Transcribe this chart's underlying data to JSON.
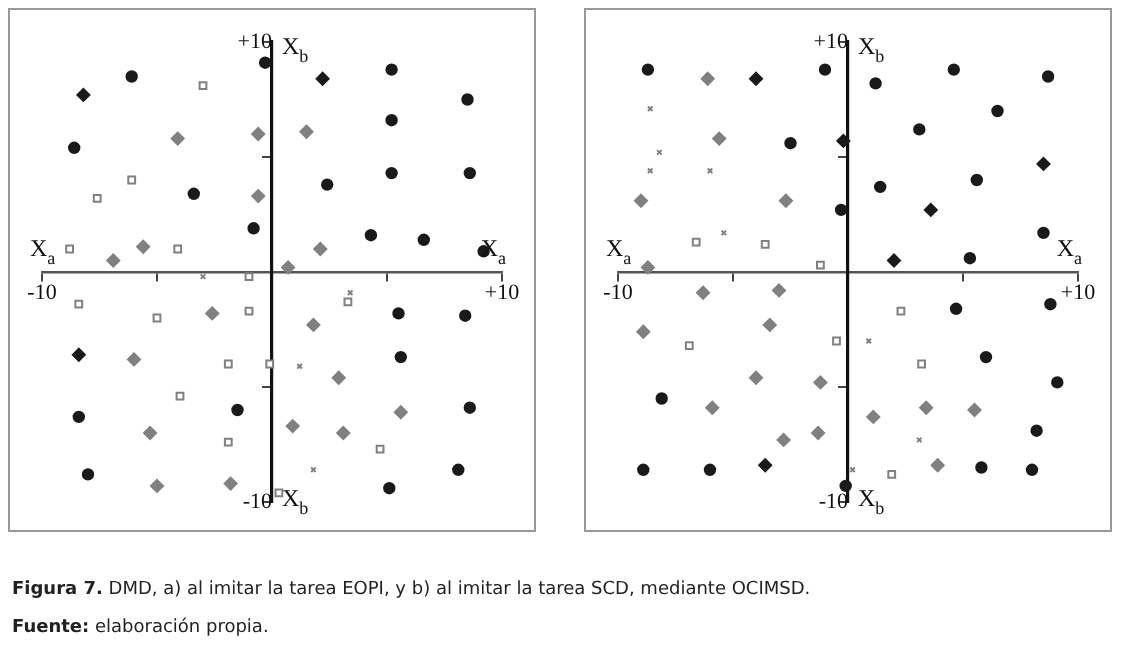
{
  "chart_data": [
    {
      "type": "scatter",
      "xlabel": "X$_{a}$",
      "ylabel": "X$_{b}$",
      "xlim": [
        -10,
        10
      ],
      "ylim": [
        -10,
        10
      ],
      "xticks": [
        -10,
        {
          "value": -5,
          "label": null
        },
        {
          "value": 5,
          "label": null
        },
        {
          "value": 10,
          "label": "+10"
        }
      ],
      "yticks": [
        -10,
        {
          "value": -5,
          "label": null
        },
        {
          "value": 5,
          "label": null
        },
        {
          "value": 10,
          "label": "+10"
        }
      ],
      "grid": false,
      "legend": false,
      "series": [
        {
          "color": "#1a1a1a",
          "marker": "circle",
          "x": [
            -0.3,
            -6.1,
            5.2,
            8.5,
            5.2,
            -8.6,
            5.2,
            8.6,
            2.4,
            -3.4,
            -0.8,
            4.3,
            6.6,
            9.2,
            5.5,
            8.4,
            5.6,
            -8.4,
            -1.5,
            8.6,
            -8.0,
            8.1,
            5.1
          ],
          "values": [
            9.1,
            8.5,
            8.8,
            7.5,
            6.6,
            5.4,
            4.3,
            4.3,
            3.8,
            3.4,
            1.9,
            1.6,
            1.4,
            0.9,
            -1.8,
            -1.9,
            -3.7,
            -6.3,
            -6.0,
            -5.9,
            -8.8,
            -8.6,
            -9.4
          ]
        },
        {
          "color": "#1a1a1a",
          "marker": "diamond",
          "x": [
            -8.2,
            2.2,
            -8.4
          ],
          "values": [
            7.7,
            8.4,
            -3.6
          ]
        },
        {
          "color": "#808080",
          "marker": "diamond",
          "x": [
            -4.1,
            -0.6,
            1.5,
            -0.6,
            -5.6,
            -6.9,
            2.1,
            0.7,
            1.8,
            -6.0,
            -2.6,
            2.9,
            5.6,
            0.9,
            3.1,
            -5.3,
            -5.0,
            -1.8
          ],
          "values": [
            5.8,
            6.0,
            6.1,
            3.3,
            1.1,
            0.5,
            1.0,
            0.2,
            -2.3,
            -3.8,
            -1.8,
            -4.6,
            -6.1,
            -6.7,
            -7.0,
            -7.0,
            -9.3,
            -9.2
          ]
        },
        {
          "color": "#808080",
          "marker": "square",
          "x": [
            -3.0,
            -6.1,
            -7.6,
            -8.8,
            -4.1,
            -1.0,
            -8.4,
            -5.0,
            -1.0,
            3.3,
            -1.9,
            -0.1,
            -4.0,
            -1.9,
            4.7,
            0.3
          ],
          "values": [
            8.1,
            4.0,
            3.2,
            1.0,
            1.0,
            -0.2,
            -1.4,
            -2.0,
            -1.7,
            -1.3,
            -4.0,
            -4.0,
            -5.4,
            -7.4,
            -7.7,
            -9.6
          ]
        },
        {
          "color": "#808080",
          "marker": "cross",
          "x": [
            -3.0,
            1.2,
            1.8,
            3.4
          ],
          "values": [
            -0.2,
            -4.1,
            -8.6,
            -0.9
          ]
        }
      ],
      "annotations": [
        "Figura 7. DMD, a) al imitar la tarea EOPI, y b) al imitar la tarea SCD, mediante OCIMSD.",
        "Fuente: elaboración propia."
      ]
    },
    {
      "type": "scatter",
      "xlabel": "X$_{a}$",
      "ylabel": "X$_{b}$",
      "xlim": [
        -10,
        10
      ],
      "ylim": [
        -10,
        10
      ],
      "xticks": [
        -10,
        {
          "value": -5,
          "label": null
        },
        {
          "value": 5,
          "label": null
        },
        {
          "value": 10,
          "label": "+10"
        }
      ],
      "yticks": [
        -10,
        {
          "value": -5,
          "label": null
        },
        {
          "value": 5,
          "label": null
        },
        {
          "value": 10,
          "label": "+10"
        }
      ],
      "grid": false,
      "legend": false,
      "series": [
        {
          "color": "#1a1a1a",
          "marker": "circle",
          "x": [
            -8.7,
            -1.0,
            4.6,
            8.7,
            1.2,
            6.5,
            3.1,
            -2.5,
            5.6,
            1.4,
            -0.3,
            8.5,
            5.3,
            4.7,
            8.8,
            6.0,
            9.1,
            -8.1,
            8.2,
            -8.9,
            -6.0,
            5.8,
            8.0,
            -0.1
          ],
          "values": [
            8.8,
            8.8,
            8.8,
            8.5,
            8.2,
            7.0,
            6.2,
            5.6,
            4.0,
            3.7,
            2.7,
            1.7,
            0.6,
            -1.6,
            -1.4,
            -3.7,
            -4.8,
            -5.5,
            -6.9,
            -8.6,
            -8.6,
            -8.5,
            -8.6,
            -9.3
          ]
        },
        {
          "color": "#1a1a1a",
          "marker": "diamond",
          "x": [
            -4.0,
            -0.2,
            8.5,
            3.6,
            2.0,
            -3.6
          ],
          "values": [
            8.4,
            5.7,
            4.7,
            2.7,
            0.5,
            -8.4
          ]
        },
        {
          "color": "#808080",
          "marker": "diamond",
          "x": [
            -6.1,
            -5.6,
            -9.0,
            -2.7,
            -8.7,
            -6.3,
            -3.0,
            -3.4,
            -8.9,
            -4.0,
            -1.2,
            -5.9,
            3.4,
            5.5,
            1.1,
            -2.8,
            -1.3,
            3.9
          ],
          "values": [
            8.4,
            5.8,
            3.1,
            3.1,
            0.2,
            -0.9,
            -0.8,
            -2.3,
            -2.6,
            -4.6,
            -4.8,
            -5.9,
            -5.9,
            -6.0,
            -6.3,
            -7.3,
            -7.0,
            -8.4
          ]
        },
        {
          "color": "#808080",
          "marker": "square",
          "x": [
            -6.6,
            -3.6,
            -1.2,
            2.3,
            -6.9,
            -0.5,
            3.2,
            1.9
          ],
          "values": [
            1.3,
            1.2,
            0.3,
            -1.7,
            -3.2,
            -3.0,
            -4.0,
            -8.8
          ]
        },
        {
          "color": "#808080",
          "marker": "cross",
          "x": [
            -8.6,
            -8.2,
            -8.6,
            -6.0,
            -5.4,
            0.9,
            3.1,
            0.2
          ],
          "values": [
            7.1,
            5.2,
            4.4,
            4.4,
            1.7,
            -3.0,
            -7.3,
            -8.6
          ]
        }
      ]
    }
  ]
}
